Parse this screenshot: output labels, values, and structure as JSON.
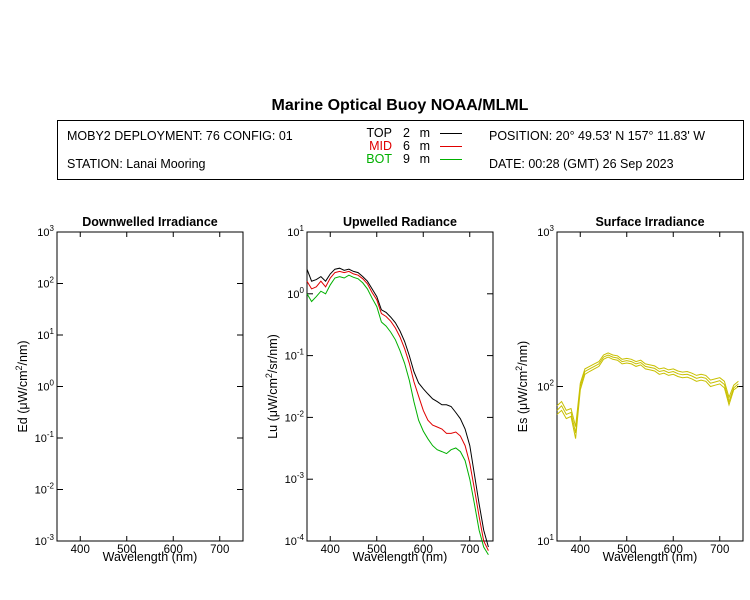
{
  "title": "Marine Optical Buoy NOAA/MLML",
  "info": {
    "deployment": "MOBY2 DEPLOYMENT: 76 CONFIG: 01",
    "station": "STATION: Lanai Mooring",
    "position": "POSITION: 20° 49.53' N   157° 11.83' W",
    "date": "DATE: 00:28 (GMT) 26 Sep 2023",
    "depths": [
      {
        "label": "TOP",
        "value": "2",
        "unit": "m",
        "color": "#000000"
      },
      {
        "label": "MID",
        "value": "6",
        "unit": "m",
        "color": "#e00000"
      },
      {
        "label": "BOT",
        "value": "9",
        "unit": "m",
        "color": "#00b000"
      }
    ]
  },
  "chart_data": [
    {
      "type": "line",
      "title": "Downwelled Irradiance",
      "xlabel": "Wavelength (nm)",
      "ylabel": "Ed  (μW/cm²/nm)",
      "xlim": [
        350,
        750
      ],
      "ylim": [
        0.001,
        1000
      ],
      "yscale": "log",
      "xticks": [
        400,
        500,
        600,
        700
      ],
      "yticks": [
        {
          "base": "10",
          "exp": "-3"
        },
        {
          "base": "10",
          "exp": "-2"
        },
        {
          "base": "10",
          "exp": "-1"
        },
        {
          "base": "10",
          "exp": "0"
        },
        {
          "base": "10",
          "exp": "1"
        },
        {
          "base": "10",
          "exp": "2"
        },
        {
          "base": "10",
          "exp": "3"
        }
      ],
      "series": []
    },
    {
      "type": "line",
      "title": "Upwelled Radiance",
      "xlabel": "Wavelength (nm)",
      "ylabel": "Lu  (μW/cm²/sr/nm)",
      "xlim": [
        350,
        750
      ],
      "ylim": [
        0.0001,
        10
      ],
      "yscale": "log",
      "xticks": [
        400,
        500,
        600,
        700
      ],
      "yticks": [
        {
          "base": "10",
          "exp": "-4"
        },
        {
          "base": "10",
          "exp": "-3"
        },
        {
          "base": "10",
          "exp": "-2"
        },
        {
          "base": "10",
          "exp": "-1"
        },
        {
          "base": "10",
          "exp": "0"
        },
        {
          "base": "10",
          "exp": "1"
        }
      ],
      "x": [
        350,
        360,
        370,
        380,
        390,
        400,
        410,
        420,
        430,
        440,
        450,
        460,
        470,
        480,
        490,
        500,
        510,
        520,
        530,
        540,
        550,
        560,
        570,
        580,
        590,
        600,
        610,
        620,
        630,
        640,
        650,
        660,
        670,
        680,
        690,
        700,
        710,
        720,
        730,
        740
      ],
      "series": [
        {
          "name": "TOP",
          "color": "#000000",
          "values": [
            2.5,
            1.6,
            1.7,
            1.9,
            1.6,
            2.1,
            2.5,
            2.6,
            2.4,
            2.5,
            2.3,
            2.2,
            1.9,
            1.6,
            1.2,
            0.9,
            0.55,
            0.5,
            0.42,
            0.34,
            0.25,
            0.17,
            0.1,
            0.055,
            0.036,
            0.029,
            0.024,
            0.02,
            0.018,
            0.016,
            0.016,
            0.015,
            0.012,
            0.0095,
            0.0065,
            0.0035,
            0.0012,
            0.0004,
            0.00015,
            8e-05
          ]
        },
        {
          "name": "MID",
          "color": "#e00000",
          "values": [
            1.6,
            1.2,
            1.3,
            1.6,
            1.3,
            1.8,
            2.2,
            2.3,
            2.2,
            2.3,
            2.1,
            2.0,
            1.75,
            1.45,
            1.05,
            0.8,
            0.48,
            0.43,
            0.36,
            0.28,
            0.2,
            0.13,
            0.075,
            0.038,
            0.022,
            0.013,
            0.009,
            0.0075,
            0.007,
            0.0065,
            0.0055,
            0.0055,
            0.0058,
            0.005,
            0.0035,
            0.0018,
            0.0007,
            0.00025,
            0.0001,
            7e-05
          ]
        },
        {
          "name": "BOT",
          "color": "#00b000",
          "values": [
            1.0,
            0.75,
            0.9,
            1.1,
            1.0,
            1.4,
            1.8,
            1.9,
            1.8,
            2.0,
            1.85,
            1.75,
            1.5,
            1.2,
            0.85,
            0.62,
            0.35,
            0.3,
            0.24,
            0.18,
            0.12,
            0.075,
            0.04,
            0.018,
            0.009,
            0.006,
            0.0045,
            0.0035,
            0.003,
            0.0028,
            0.0026,
            0.003,
            0.0032,
            0.0028,
            0.002,
            0.001,
            0.0004,
            0.00015,
            8e-05,
            6e-05
          ]
        }
      ]
    },
    {
      "type": "line",
      "title": "Surface Irradiance",
      "xlabel": "Wavelength (nm)",
      "ylabel": "Es  (μW/cm²/nm)",
      "xlim": [
        350,
        750
      ],
      "ylim": [
        10,
        1000
      ],
      "yscale": "log",
      "xticks": [
        400,
        500,
        600,
        700
      ],
      "yticks": [
        {
          "base": "10",
          "exp": "1"
        },
        {
          "base": "10",
          "exp": "2"
        },
        {
          "base": "10",
          "exp": "3"
        }
      ],
      "x": [
        350,
        360,
        370,
        380,
        390,
        400,
        410,
        420,
        430,
        440,
        450,
        460,
        470,
        480,
        490,
        500,
        510,
        520,
        530,
        540,
        550,
        560,
        570,
        580,
        590,
        600,
        610,
        620,
        630,
        640,
        650,
        660,
        670,
        680,
        690,
        700,
        710,
        720,
        730,
        740
      ],
      "series": [
        {
          "name": "Es",
          "color": "#c8c000",
          "values": [
            75,
            80,
            70,
            72,
            55,
            105,
            130,
            135,
            140,
            145,
            160,
            165,
            160,
            158,
            150,
            152,
            150,
            145,
            148,
            140,
            138,
            136,
            130,
            132,
            128,
            130,
            126,
            124,
            125,
            122,
            118,
            120,
            118,
            110,
            112,
            114,
            108,
            85,
            102,
            108
          ]
        },
        {
          "name": "Es",
          "color": "#c8c000",
          "values": [
            70,
            75,
            66,
            68,
            50,
            100,
            125,
            130,
            135,
            140,
            155,
            160,
            155,
            153,
            145,
            147,
            145,
            140,
            143,
            135,
            133,
            131,
            125,
            127,
            123,
            125,
            121,
            119,
            120,
            117,
            113,
            115,
            113,
            105,
            107,
            109,
            103,
            80,
            98,
            104
          ]
        },
        {
          "name": "Es",
          "color": "#c8c000",
          "values": [
            66,
            70,
            62,
            64,
            46,
            95,
            120,
            125,
            130,
            135,
            150,
            155,
            150,
            148,
            140,
            142,
            140,
            135,
            138,
            130,
            128,
            126,
            120,
            122,
            118,
            120,
            116,
            114,
            115,
            112,
            108,
            110,
            108,
            100,
            102,
            104,
            98,
            76,
            95,
            100
          ]
        }
      ]
    }
  ]
}
